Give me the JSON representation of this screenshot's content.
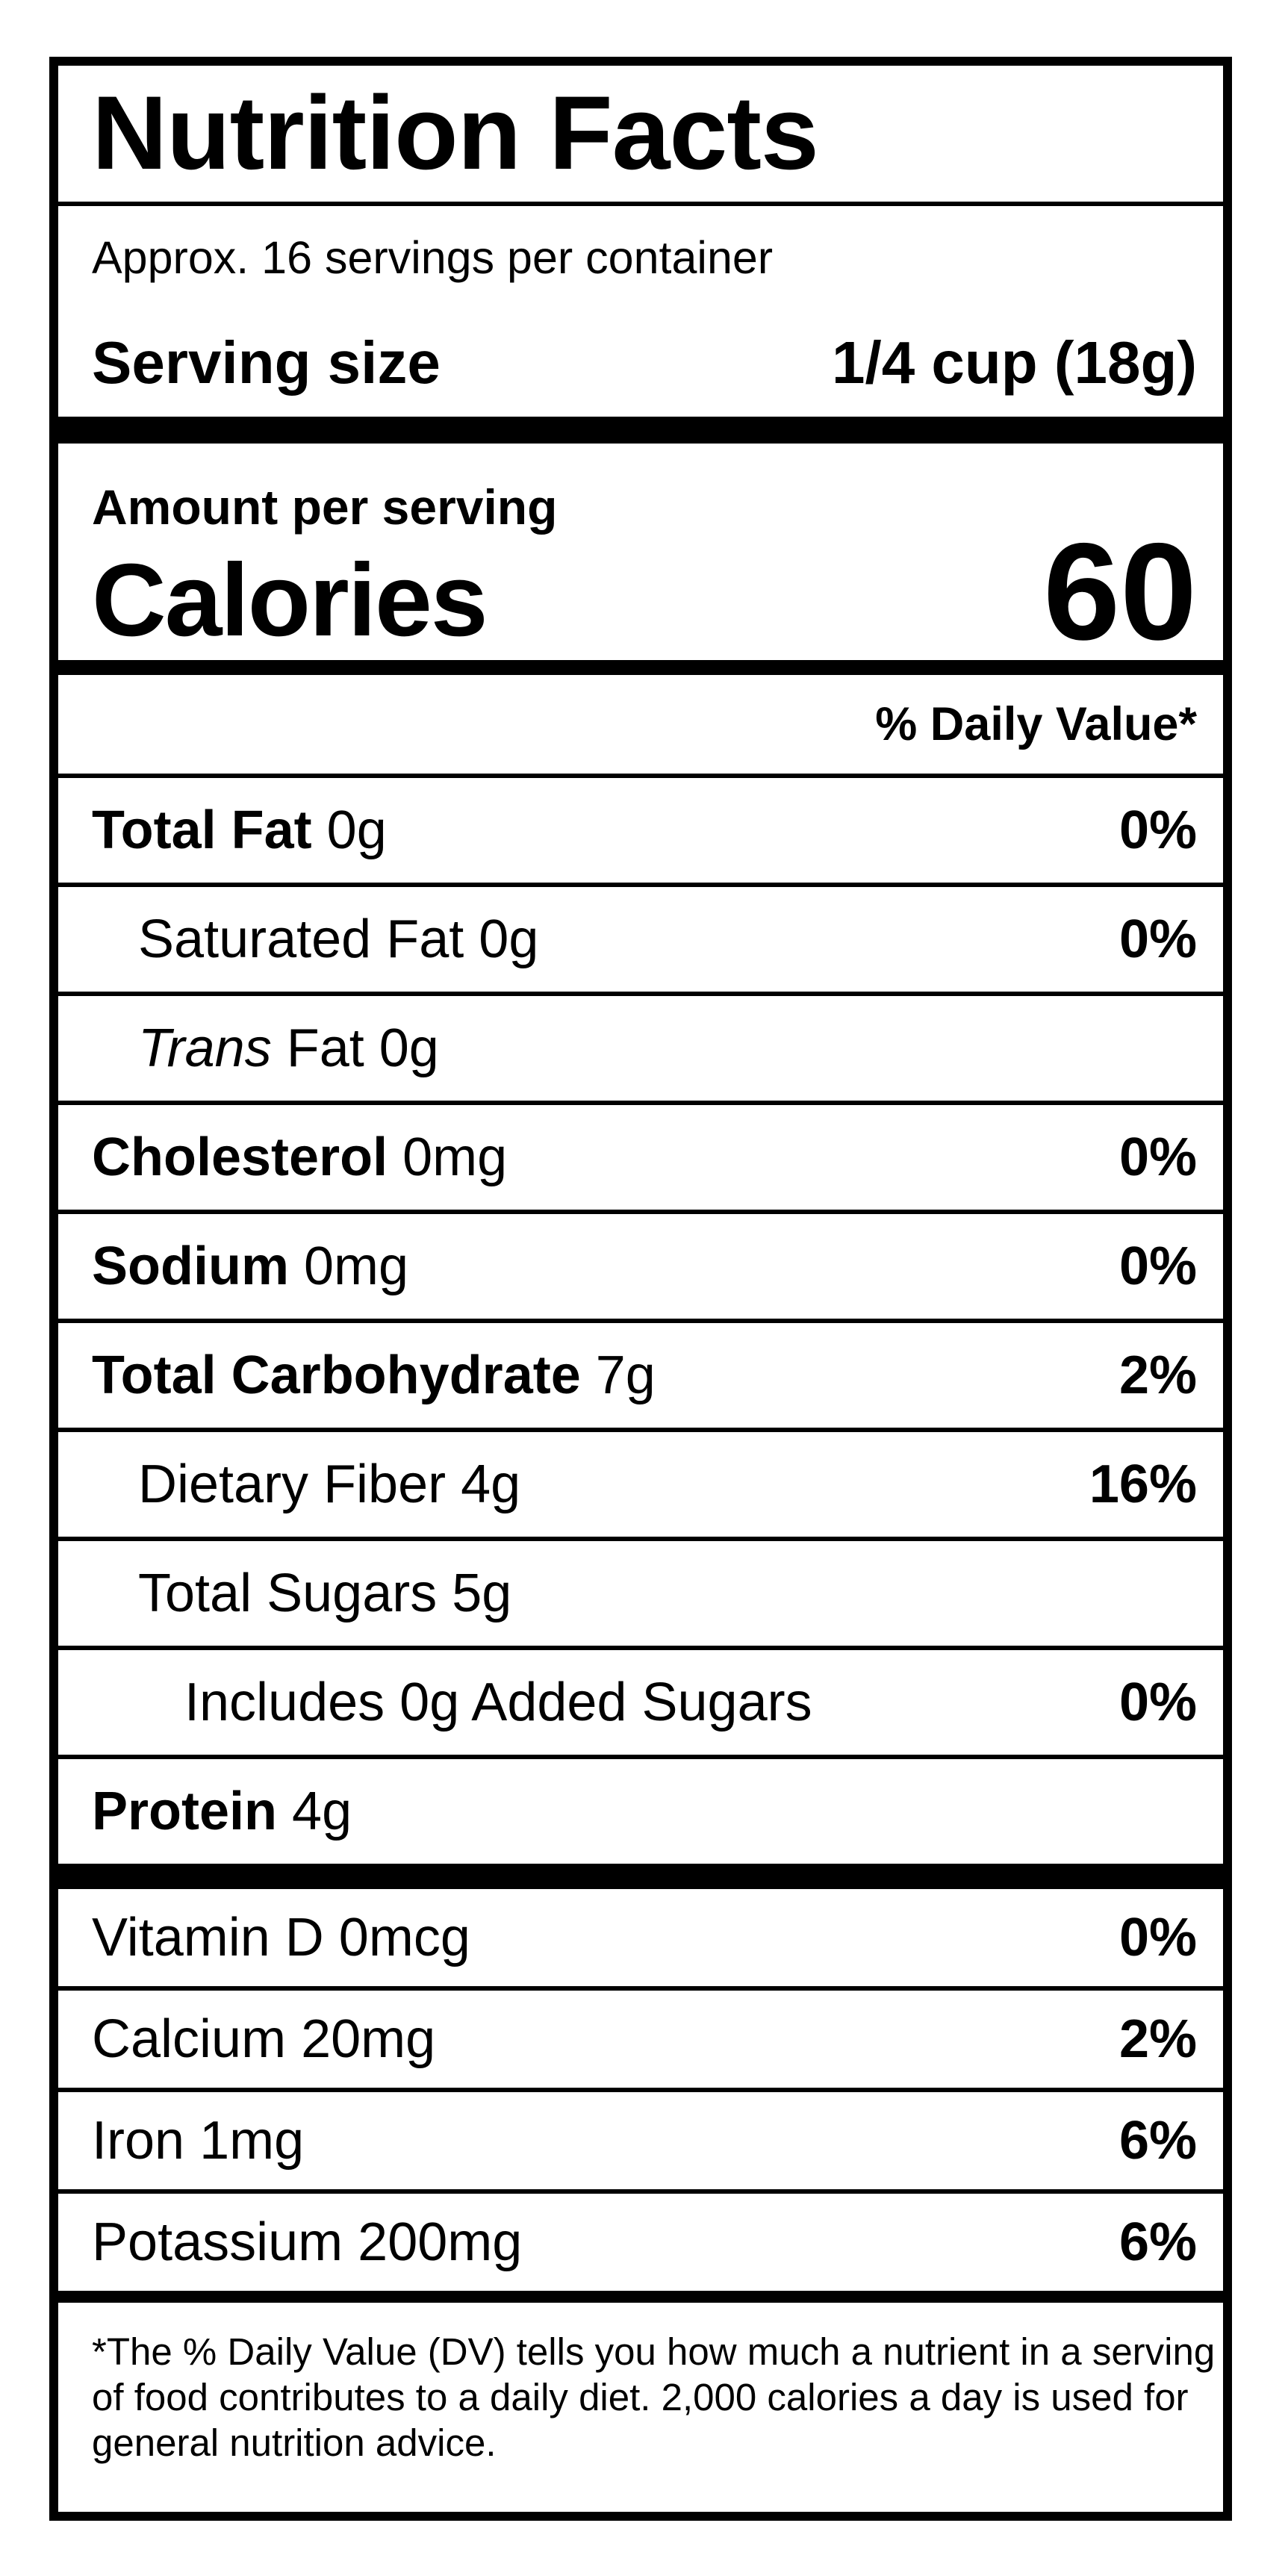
{
  "nutrition_label": {
    "title": "Nutrition Facts",
    "servings_per_container": "Approx. 16 servings per container",
    "serving_size": {
      "label": "Serving size",
      "value": "1/4 cup (18g)"
    },
    "calories": {
      "context": "Amount per serving",
      "label": "Calories",
      "value": "60"
    },
    "daily_value_header": "% Daily Value*",
    "nutrients": [
      {
        "name": "Total Fat",
        "amount": "0g",
        "percent": "0%"
      },
      {
        "name": "Saturated Fat",
        "amount": "0g",
        "percent": "0%"
      },
      {
        "name": "Trans",
        "amount": "Fat 0g",
        "percent": ""
      },
      {
        "name": "Cholesterol",
        "amount": "0mg",
        "percent": "0%"
      },
      {
        "name": "Sodium",
        "amount": "0mg",
        "percent": "0%"
      },
      {
        "name": "Total Carbohydrate",
        "amount": "7g",
        "percent": "2%"
      },
      {
        "name": "Dietary Fiber",
        "amount": "4g",
        "percent": "16%"
      },
      {
        "name": "Total Sugars",
        "amount": "5g",
        "percent": ""
      },
      {
        "name": "Includes 0g Added Sugars",
        "amount": "",
        "percent": "0%"
      },
      {
        "name": "Protein",
        "amount": "4g",
        "percent": ""
      }
    ],
    "micronutrients": [
      {
        "name": "Vitamin D",
        "amount": "0mcg",
        "percent": "0%"
      },
      {
        "name": "Calcium",
        "amount": "20mg",
        "percent": "2%"
      },
      {
        "name": "Iron",
        "amount": "1mg",
        "percent": "6%"
      },
      {
        "name": "Potassium",
        "amount": "200mg",
        "percent": "6%"
      }
    ],
    "footnote": "*The % Daily Value (DV) tells you how much a nutrient in a serving of food contributes to a daily diet. 2,000 calories a day is used for general nutrition advice.",
    "colors": {
      "ink": "#000000",
      "background": "#ffffff"
    }
  }
}
